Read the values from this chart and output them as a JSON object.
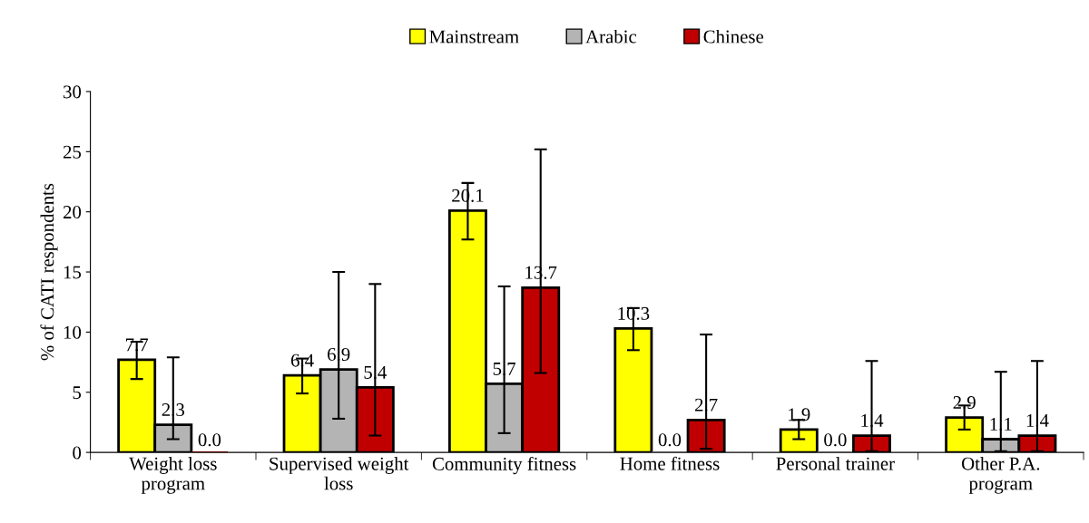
{
  "chart_data": {
    "type": "bar",
    "ylabel": "% of CATI respondents",
    "categories": [
      "Weight loss\nprogram",
      "Supervised weight\nloss",
      "Community fitness",
      "Home fitness",
      "Personal trainer",
      "Other P.A.\nprogram"
    ],
    "series": [
      {
        "name": "Mainstream",
        "color": "#ffff00",
        "values": [
          7.7,
          6.4,
          20.1,
          10.3,
          1.9,
          2.9
        ],
        "errors": [
          [
            6.1,
            9.2
          ],
          [
            4.9,
            7.8
          ],
          [
            17.7,
            22.4
          ],
          [
            8.5,
            12.0
          ],
          [
            1.1,
            2.7
          ],
          [
            1.9,
            3.9
          ]
        ],
        "value_labels": [
          "7.7",
          "6.4",
          "20.1",
          "10.3",
          "1.9",
          "2.9"
        ]
      },
      {
        "name": "Arabic",
        "color": "#b4b4b4",
        "values": [
          2.3,
          6.9,
          5.7,
          0.0,
          0.0,
          1.1
        ],
        "errors": [
          [
            1.1,
            7.9
          ],
          [
            2.8,
            15.0
          ],
          [
            1.6,
            13.8
          ],
          null,
          null,
          [
            0.1,
            6.7
          ]
        ],
        "value_labels": [
          "2.3",
          "6.9",
          "5.7",
          "0.0",
          "0.0",
          "1.1"
        ]
      },
      {
        "name": "Chinese",
        "color": "#c00000",
        "values": [
          0.0,
          5.4,
          13.7,
          2.7,
          1.4,
          1.4
        ],
        "errors": [
          null,
          [
            1.4,
            14.0
          ],
          [
            6.6,
            25.2
          ],
          [
            0.3,
            9.8
          ],
          [
            0.1,
            7.6
          ],
          [
            0.1,
            7.6
          ]
        ],
        "value_labels": [
          "0.0",
          "5.4",
          "13.7",
          "2.7",
          "1.4",
          "1.4"
        ]
      }
    ],
    "ylim": [
      0,
      30
    ],
    "yticks": [
      0,
      5,
      10,
      15,
      20,
      25,
      30
    ],
    "grid": false,
    "legend": "top"
  }
}
